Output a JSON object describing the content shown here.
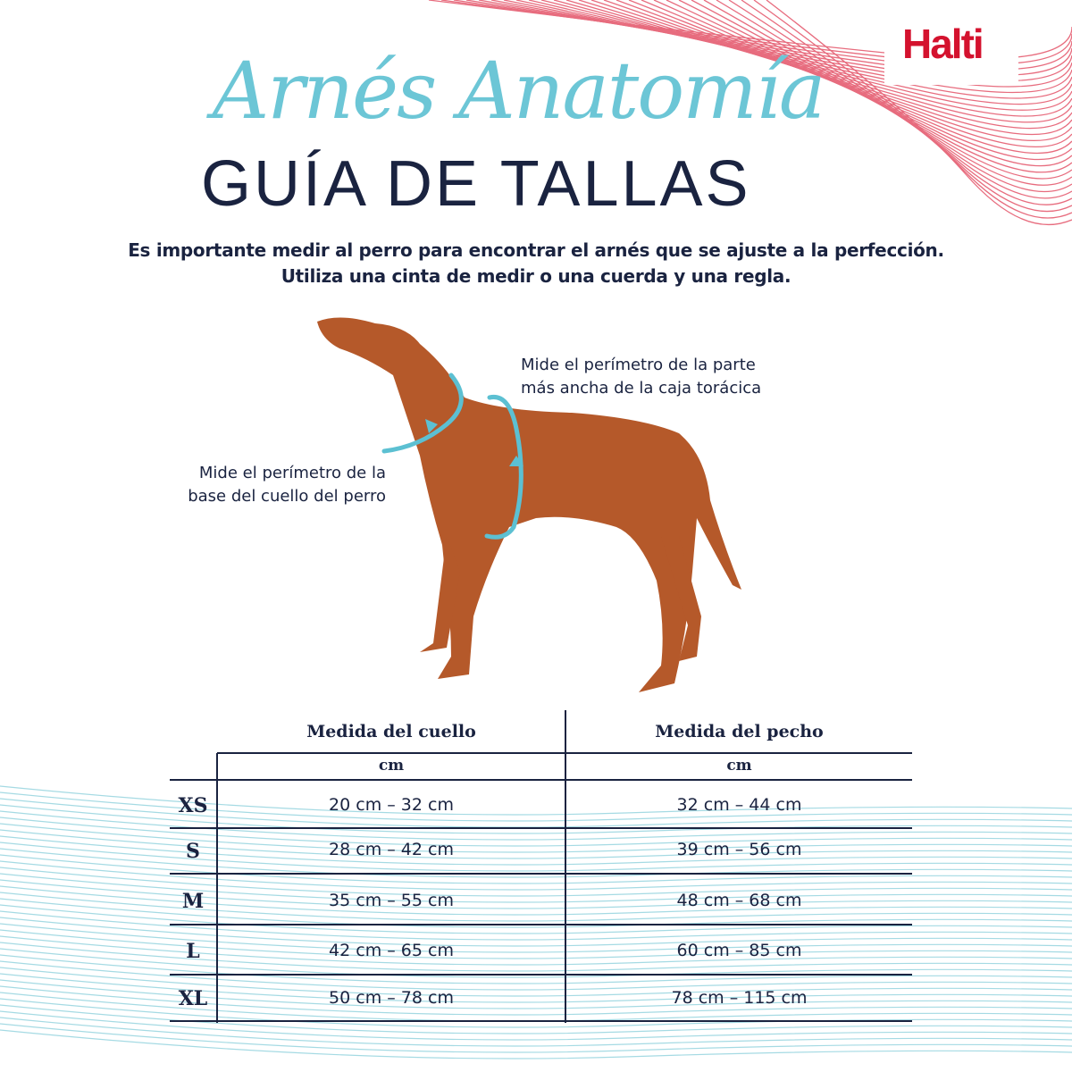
{
  "brand": {
    "logo_text": "Halti",
    "accent_color": "#d4122e",
    "teal_color": "#6cc6d6",
    "navy_color": "#1a2340"
  },
  "header": {
    "script_title": "Arnés Anatomía",
    "title": "GUÍA DE TALLAS"
  },
  "intro": {
    "line1": "Es importante medir al perro para encontrar el arnés que se ajuste a la perfección.",
    "line2": "Utiliza una cinta de medir o una cuerda y una regla."
  },
  "notes": {
    "chest_line1": "Mide el perímetro de la parte",
    "chest_line2": "más ancha de la caja torácica",
    "neck_line1": "Mide el perímetro de la",
    "neck_line2": "base del cuello del perro"
  },
  "table": {
    "col_neck": "Medida del cuello",
    "col_chest": "Medida del pecho",
    "unit": "cm",
    "rows": [
      {
        "size": "XS",
        "neck": "20 cm – 32 cm",
        "chest": "32 cm – 44 cm"
      },
      {
        "size": "S",
        "neck": "28 cm – 42 cm",
        "chest": "39 cm – 56 cm"
      },
      {
        "size": "M",
        "neck": "35 cm – 55 cm",
        "chest": "48 cm – 68 cm"
      },
      {
        "size": "L",
        "neck": "42 cm – 65 cm",
        "chest": "60 cm – 85 cm"
      },
      {
        "size": "XL",
        "neck": "50 cm – 78 cm",
        "chest": "78 cm – 115 cm"
      }
    ]
  }
}
